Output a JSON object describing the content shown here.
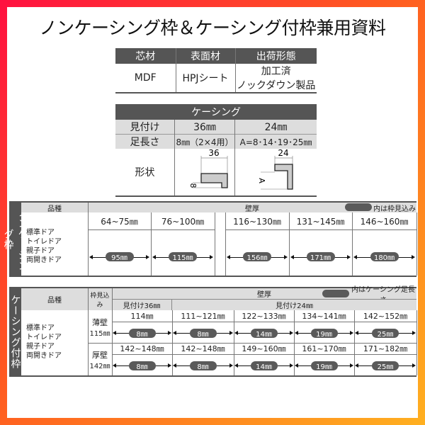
{
  "title": "ノンケーシング枠＆ケーシング付枠兼用資料",
  "spec": {
    "headers": [
      "芯材",
      "表面材",
      "出荷形態"
    ],
    "values": [
      "MDF",
      "HPJシート",
      "加工済",
      "ノックダウン製品"
    ]
  },
  "casing": {
    "header": "ケーシング",
    "rows": [
      {
        "label": "見付け",
        "v36": "36㎜",
        "v24": "24㎜"
      },
      {
        "label": "足長さ",
        "v36": "8㎜（2×4用）",
        "v24": "A=8･14･19･25㎜"
      }
    ],
    "shape_label": "形状",
    "dim36": "36",
    "dim8": "8",
    "dim24": "24",
    "dimA": "A"
  },
  "noncasing": {
    "side": "ノンケーシング枠",
    "kind_header": "品種",
    "wall_header": "壁厚",
    "legend": "内は枠見込み",
    "doors": [
      "標準ドア",
      "トイレドア",
      "親子ドア",
      "両開きドア"
    ],
    "ranges": [
      "64~75㎜",
      "76~100㎜",
      "116~130㎜",
      "131~145㎜",
      "146~160㎜"
    ],
    "depths": [
      "95㎜",
      "115㎜",
      "156㎜",
      "171㎜",
      "180㎜"
    ]
  },
  "casingframe": {
    "side": "ケーシング付枠",
    "kind_header": "品種",
    "depth_header": "枠見込み",
    "wall_header": "壁厚",
    "legend": "内はケーシング足長さ",
    "mitsuke36": "見付け36㎜",
    "mitsuke24": "見付け24㎜",
    "doors": [
      "標準ドア",
      "トイレドア",
      "親子ドア",
      "両開きドア"
    ],
    "rows": [
      {
        "name": "薄壁",
        "depth": "115㎜",
        "ranges": [
          "114㎜",
          "111~121㎜",
          "122~133㎜",
          "134~141㎜",
          "142~152㎜"
        ],
        "legs": [
          "8㎜",
          "8㎜",
          "14㎜",
          "19㎜",
          "25㎜"
        ]
      },
      {
        "name": "厚壁",
        "depth": "142㎜",
        "ranges": [
          "142~148㎜",
          "142~148㎜",
          "149~160㎜",
          "161~170㎜",
          "171~182㎜"
        ],
        "legs": [
          "8㎜",
          "8㎜",
          "14㎜",
          "19㎜",
          "25㎜"
        ]
      }
    ]
  }
}
